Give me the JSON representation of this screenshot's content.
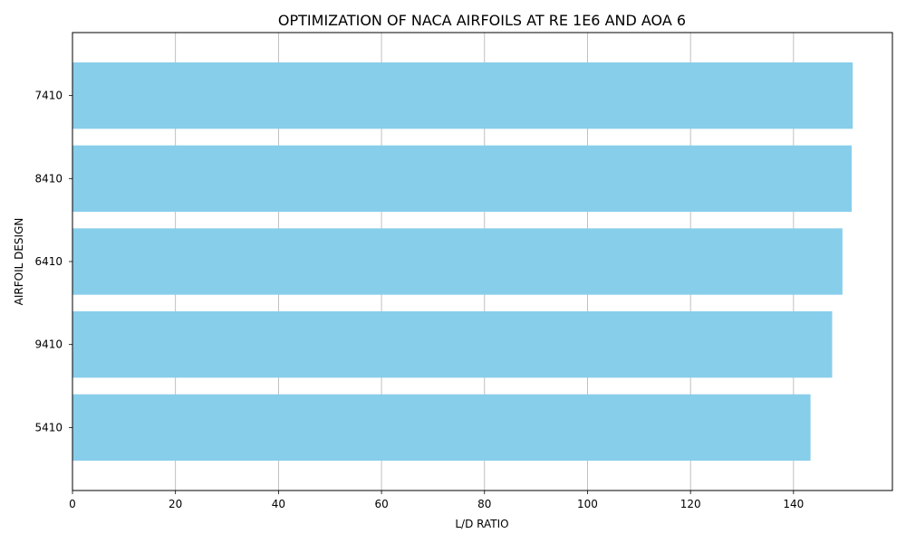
{
  "chart_data": {
    "type": "bar",
    "orientation": "horizontal",
    "title": "OPTIMIZATION OF NACA AIRFOILS AT RE 1E6 AND AOA 6",
    "xlabel": "L/D RATIO",
    "ylabel": "AIRFOIL DESIGN",
    "categories": [
      "7410",
      "8410",
      "6410",
      "9410",
      "5410"
    ],
    "values": [
      151.5,
      151.3,
      149.5,
      147.5,
      143.3
    ],
    "xlim": [
      0,
      159.2
    ],
    "xticks": [
      0,
      20,
      40,
      60,
      80,
      100,
      120,
      140
    ],
    "grid": "x",
    "bar_color": "#87ceeb",
    "grid_color": "#b0b0b0"
  }
}
